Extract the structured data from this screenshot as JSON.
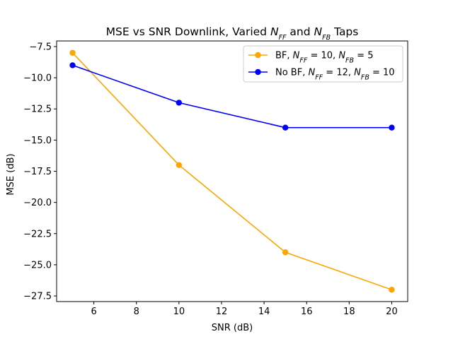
{
  "chart_data": {
    "type": "line",
    "title": {
      "prefix": "MSE vs SNR Downlink, Varied ",
      "n1": "N",
      "n1_sub": "FF",
      "mid": " and ",
      "n2": "N",
      "n2_sub": "FB",
      "suffix": " Taps"
    },
    "xlabel": "SNR (dB)",
    "ylabel": "MSE (dB)",
    "xlim": [
      4.25,
      20.75
    ],
    "ylim": [
      -27.95,
      -7.05
    ],
    "xticks": [
      6,
      8,
      10,
      12,
      14,
      16,
      18,
      20
    ],
    "xtick_labels": [
      "6",
      "8",
      "10",
      "12",
      "14",
      "16",
      "18",
      "20"
    ],
    "yticks": [
      -7.5,
      -10.0,
      -12.5,
      -15.0,
      -17.5,
      -20.0,
      -22.5,
      -25.0,
      -27.5
    ],
    "ytick_labels": [
      "−7.5",
      "−10.0",
      "−12.5",
      "−15.0",
      "−17.5",
      "−20.0",
      "−22.5",
      "−25.0",
      "−27.5"
    ],
    "grid": false,
    "legend_position": "top-right",
    "x": [
      5,
      10,
      15,
      20
    ],
    "series": [
      {
        "name": {
          "prefix": "BF, ",
          "a": "N",
          "a_sub": "FF",
          "a_val": " = 10, ",
          "b": "N",
          "b_sub": "FB",
          "b_val": " = 5"
        },
        "values": [
          -8.0,
          -17.0,
          -24.0,
          -27.0
        ],
        "color": "#ffa500"
      },
      {
        "name": {
          "prefix": "No BF, ",
          "a": "N",
          "a_sub": "FF",
          "a_val": " = 12, ",
          "b": "N",
          "b_sub": "FB",
          "b_val": " = 10"
        },
        "values": [
          -9.0,
          -12.0,
          -14.0,
          -14.0
        ],
        "color": "#0000ff"
      }
    ]
  }
}
